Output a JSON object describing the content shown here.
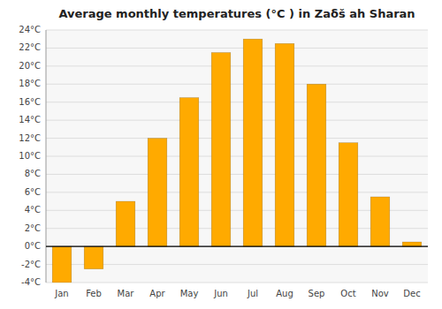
{
  "chart_data": {
    "type": "bar",
    "title": "Average monthly temperatures (°C ) in Zaẟš ah Sharan",
    "categories": [
      "Jan",
      "Feb",
      "Mar",
      "Apr",
      "May",
      "Jun",
      "Jul",
      "Aug",
      "Sep",
      "Oct",
      "Nov",
      "Dec"
    ],
    "values": [
      -4,
      -2.5,
      5,
      12,
      16.5,
      21.5,
      23,
      22.5,
      18,
      11.5,
      5.5,
      0.5
    ],
    "color": "#FFAA00",
    "ylim": [
      -4,
      24
    ],
    "yticks": [
      {
        "value": -4,
        "label": "-4°C"
      },
      {
        "value": -2,
        "label": "-2°C"
      },
      {
        "value": 0,
        "label": "0°C"
      },
      {
        "value": 2,
        "label": "2°C"
      },
      {
        "value": 4,
        "label": "4°C"
      },
      {
        "value": 6,
        "label": "6°C"
      },
      {
        "value": 8,
        "label": "8°C"
      },
      {
        "value": 10,
        "label": "10°C"
      },
      {
        "value": 12,
        "label": "12°C"
      },
      {
        "value": 14,
        "label": "14°C"
      },
      {
        "value": 16,
        "label": "16°C"
      },
      {
        "value": 18,
        "label": "18°C"
      },
      {
        "value": 20,
        "label": "20°C"
      },
      {
        "value": 22,
        "label": "22°C"
      },
      {
        "value": 24,
        "label": "24°C"
      }
    ],
    "grid": true
  }
}
